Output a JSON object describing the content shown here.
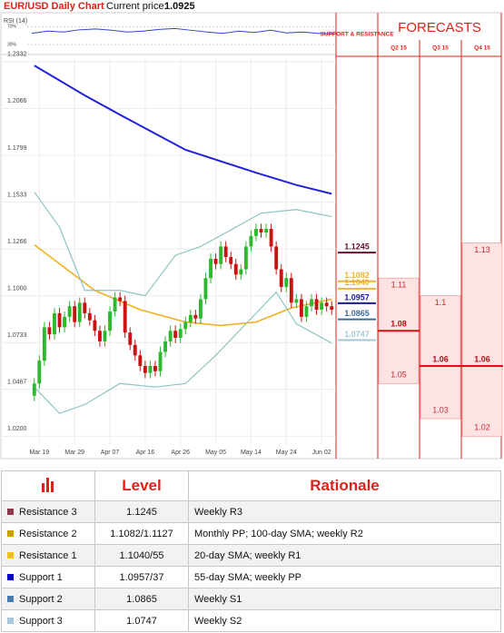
{
  "header": {
    "title": "EUR/USD Daily Chart",
    "price_label": "Current price:",
    "price": 1.0925
  },
  "chart_data": [
    {
      "type": "line",
      "title": "RSI (14)",
      "color": "#3344cc",
      "values": [
        55,
        60,
        58,
        63,
        65,
        62,
        58,
        60,
        64,
        66,
        62,
        58,
        55,
        60,
        57,
        62,
        56,
        58,
        55,
        54
      ],
      "ylim": [
        18,
        89
      ],
      "yticks": [
        {
          "value": 70,
          "label": "70%"
        },
        {
          "value": 30,
          "label": "30%"
        }
      ]
    },
    {
      "type": "candlestick",
      "grid": true,
      "up_color": "#2db82d",
      "down_color": "#cc1111",
      "ylim": [
        1.015,
        1.2347
      ],
      "yticks": [
        {
          "value": 1.02,
          "label": "1.0200"
        },
        1.0467,
        1.0733,
        {
          "value": 1.1,
          "label": "1.1000"
        },
        1.1266,
        1.1533,
        1.1799,
        1.2066,
        1.2332
      ],
      "categories": [
        null,
        "Mar 19",
        null,
        null,
        null,
        null,
        null,
        null,
        "Mar 29",
        null,
        null,
        null,
        null,
        null,
        null,
        "Apr 07",
        null,
        null,
        null,
        null,
        null,
        null,
        "Apr 16",
        null,
        null,
        null,
        null,
        null,
        null,
        "Apr 26",
        null,
        null,
        null,
        null,
        null,
        null,
        "May 05",
        null,
        null,
        null,
        null,
        null,
        null,
        "May 14",
        null,
        null,
        null,
        null,
        null,
        null,
        "May 24",
        null,
        null,
        null,
        null,
        null,
        null,
        "Jun 02",
        null,
        null
      ],
      "open": [
        1.043,
        1.05,
        1.063,
        1.082,
        1.078,
        1.09,
        1.082,
        1.088,
        1.094,
        1.085,
        1.096,
        1.09,
        1.086,
        1.08,
        1.074,
        1.08,
        1.091,
        1.099,
        1.097,
        1.079,
        1.072,
        1.066,
        1.06,
        1.056,
        1.06,
        1.057,
        1.068,
        1.074,
        1.08,
        1.076,
        1.081,
        1.085,
        1.089,
        1.087,
        1.098,
        1.11,
        1.121,
        1.118,
        1.128,
        1.122,
        1.118,
        1.112,
        1.115,
        1.128,
        1.134,
        1.138,
        1.136,
        1.138,
        1.128,
        1.115,
        1.105,
        1.11,
        1.096,
        1.098,
        1.088,
        1.094,
        1.098,
        1.092,
        1.096,
        1.094
      ],
      "high": [
        1.053,
        1.066,
        1.085,
        1.085,
        1.093,
        1.093,
        1.091,
        1.097,
        1.097,
        1.099,
        1.099,
        1.093,
        1.089,
        1.083,
        1.083,
        1.094,
        1.102,
        1.102,
        1.1,
        1.082,
        1.075,
        1.069,
        1.063,
        1.063,
        1.063,
        1.071,
        1.077,
        1.083,
        1.083,
        1.084,
        1.088,
        1.092,
        1.092,
        1.101,
        1.113,
        1.124,
        1.124,
        1.131,
        1.131,
        1.125,
        1.121,
        1.118,
        1.131,
        1.137,
        1.141,
        1.141,
        1.141,
        1.141,
        1.131,
        1.118,
        1.113,
        1.113,
        1.101,
        1.101,
        1.097,
        1.101,
        1.101,
        1.099,
        1.099,
        1.097
      ],
      "low": [
        1.04,
        1.047,
        1.06,
        1.075,
        1.075,
        1.079,
        1.079,
        1.085,
        1.082,
        1.082,
        1.087,
        1.083,
        1.077,
        1.071,
        1.071,
        1.077,
        1.088,
        1.094,
        1.076,
        1.069,
        1.063,
        1.057,
        1.053,
        1.053,
        1.054,
        1.054,
        1.065,
        1.071,
        1.073,
        1.073,
        1.078,
        1.082,
        1.084,
        1.084,
        1.095,
        1.107,
        1.115,
        1.115,
        1.119,
        1.115,
        1.109,
        1.109,
        1.112,
        1.125,
        1.131,
        1.133,
        1.133,
        1.125,
        1.112,
        1.102,
        1.102,
        1.093,
        1.093,
        1.085,
        1.085,
        1.091,
        1.089,
        1.089,
        1.091,
        1.089
      ],
      "close": [
        1.05,
        1.063,
        1.082,
        1.078,
        1.09,
        1.082,
        1.088,
        1.094,
        1.085,
        1.096,
        1.09,
        1.086,
        1.08,
        1.074,
        1.08,
        1.091,
        1.099,
        1.097,
        1.079,
        1.072,
        1.066,
        1.06,
        1.056,
        1.06,
        1.057,
        1.068,
        1.074,
        1.08,
        1.076,
        1.081,
        1.085,
        1.089,
        1.087,
        1.098,
        1.11,
        1.121,
        1.118,
        1.128,
        1.122,
        1.118,
        1.112,
        1.115,
        1.128,
        1.134,
        1.138,
        1.136,
        1.138,
        1.128,
        1.115,
        1.105,
        1.11,
        1.096,
        1.098,
        1.088,
        1.094,
        1.098,
        1.092,
        1.096,
        1.094,
        1.092
      ],
      "lines": [
        {
          "color": "#2222dd",
          "width": 2,
          "x": [
            0,
            10,
            17,
            30,
            44,
            52,
            59
          ],
          "values": [
            1.231,
            1.214,
            1.203,
            1.183,
            1.17,
            1.163,
            1.158
          ]
        },
        {
          "color": "#f0b020",
          "width": 1.6,
          "x": [
            0,
            12,
            21,
            30,
            37,
            44,
            51,
            59
          ],
          "values": [
            1.129,
            1.103,
            1.092,
            1.085,
            1.083,
            1.085,
            1.093,
            1.098
          ]
        },
        {
          "color": "#8fc3c3",
          "width": 1.2,
          "x": [
            0,
            5,
            10,
            17,
            22,
            28,
            33,
            40,
            45,
            52,
            59
          ],
          "values": [
            1.159,
            1.139,
            1.103,
            1.103,
            1.1,
            1.123,
            1.128,
            1.139,
            1.147,
            1.149,
            1.145
          ]
        },
        {
          "color": "#8fc3c3",
          "width": 1.2,
          "x": [
            0,
            5,
            10,
            17,
            24,
            30,
            36,
            42,
            48,
            52,
            59
          ],
          "values": [
            1.048,
            1.033,
            1.038,
            1.05,
            1.048,
            1.05,
            1.066,
            1.084,
            1.102,
            1.084,
            1.073
          ]
        }
      ],
      "levels": [
        {
          "value": 1.1245,
          "color": "#6b1030"
        },
        {
          "value": 1.1082,
          "color": "#f0b030"
        },
        {
          "value": 1.104,
          "label": "1.1040",
          "color": "#f0b030"
        },
        {
          "value": 1.0957,
          "color": "#1a1aa0"
        },
        {
          "value": 1.0865,
          "color": "#3a6a9a"
        },
        {
          "value": 1.0747,
          "color": "#a0c8d8"
        }
      ]
    },
    {
      "type": "forecast",
      "title": "FORECASTS",
      "label": "SUPPORT & RESISTANCE",
      "ylim": [
        1.015,
        1.2347
      ],
      "categories": [
        "Q2 15",
        "Q3 15",
        "Q4 15"
      ],
      "high": [
        1.11,
        1.1,
        1.13
      ],
      "base": [
        1.08,
        1.06,
        1.06
      ],
      "low": [
        1.05,
        1.03,
        1.02
      ]
    }
  ],
  "table": {
    "header": [
      "Level",
      "Rationale"
    ],
    "rows": [
      {
        "name": "Resistance 3",
        "color": "#8b3a4a",
        "level": "1.1245",
        "rationale": "Weekly R3"
      },
      {
        "name": "Resistance 2",
        "color": "#c8a000",
        "level": "1.1082/1.1127",
        "rationale": "Monthly PP; 100-day SMA; weekly R2"
      },
      {
        "name": "Resistance 1",
        "color": "#f0c020",
        "level": "1.1040/55",
        "rationale": "20-day SMA; weekly R1"
      },
      {
        "name": "Support 1",
        "color": "#0000cc",
        "level": "1.0957/37",
        "rationale": "55-day SMA; weekly PP"
      },
      {
        "name": "Support 2",
        "color": "#4a7ab0",
        "level": "1.0865",
        "rationale": "Weekly S1"
      },
      {
        "name": "Support 3",
        "color": "#a8c8e0",
        "level": "1.0747",
        "rationale": "Weekly S2"
      }
    ]
  }
}
